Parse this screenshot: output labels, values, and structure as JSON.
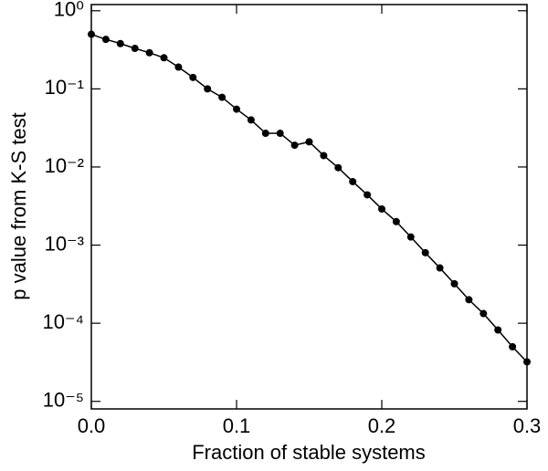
{
  "chart_data": {
    "type": "line",
    "xlabel": "Fraction of stable systems",
    "ylabel": "p value from K-S test",
    "x": [
      0,
      0.01,
      0.02,
      0.03,
      0.04,
      0.05,
      0.06,
      0.07,
      0.08,
      0.09,
      0.1,
      0.11,
      0.12,
      0.13,
      0.14,
      0.15,
      0.16,
      0.17,
      0.18,
      0.19,
      0.2,
      0.21,
      0.22,
      0.23,
      0.24,
      0.25,
      0.26,
      0.27,
      0.28,
      0.29,
      0.3
    ],
    "series": [
      {
        "color": "#000000",
        "values": [
          0.5,
          0.43,
          0.38,
          0.33,
          0.29,
          0.25,
          0.19,
          0.14,
          0.1,
          0.078,
          0.055,
          0.04,
          0.027,
          0.027,
          0.019,
          0.021,
          0.014,
          0.0098,
          0.0065,
          0.0044,
          0.0029,
          0.002,
          0.00127,
          0.0008,
          0.00051,
          0.00032,
          0.0002,
          0.000133,
          8.2e-05,
          5e-05,
          3.2e-05
        ]
      }
    ],
    "xlim": [
      0,
      0.3
    ],
    "xticks": [
      {
        "value": 0,
        "label": "0.0"
      },
      0.1,
      0.2,
      0.3
    ],
    "ylim": [
      8e-06,
      1.2
    ],
    "yscale": "log",
    "yticks": [
      {
        "value": 1e-05,
        "label": "10⁻⁵"
      },
      {
        "value": 0.0001,
        "label": "10⁻⁴"
      },
      {
        "value": 0.001,
        "label": "10⁻³"
      },
      {
        "value": 0.01,
        "label": "10⁻²"
      },
      {
        "value": 0.1,
        "label": "10⁻¹"
      },
      {
        "value": 1,
        "label": "10⁰"
      }
    ]
  }
}
